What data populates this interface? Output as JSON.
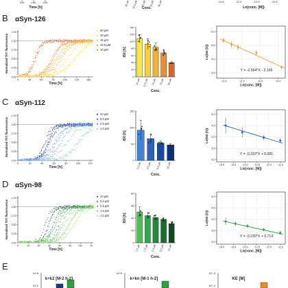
{
  "top_strip": {
    "left_xlabel": "Time [h]",
    "left_ticks": [
      "100",
      "150",
      "200"
    ],
    "mid_ticks": [
      "10 µM",
      "12.5 µM",
      "15 µM",
      "25 µM",
      "50 µM"
    ],
    "mid_xlabel": "Conc.",
    "right_ticks": [
      "-11.5",
      "-11.0",
      "-10.5",
      "-10.0"
    ],
    "right_xlabel": "Ln(conc. [M])"
  },
  "panels": [
    {
      "letter": "B",
      "title": "αSyn-126",
      "color_light": "#f5e94a",
      "color_dark": "#d9531e",
      "legend": [
        "50 µM",
        "25 µM",
        "15 µM",
        "12.5 µM",
        "10 µM"
      ],
      "legend_colors": [
        "#ffe94a",
        "#fbd13a",
        "#f7a632",
        "#f07b27",
        "#e3551e"
      ],
      "kinetics_ylabel": "Normalized ThT fluorescence",
      "kinetics_xlabel": "Time [h]",
      "kinetics_xticks": [
        "0",
        "25",
        "50",
        "75",
        "100",
        "125",
        "150"
      ],
      "kinetics_xmax": 160,
      "kinetics_yticks": [
        "0.00",
        "0.25",
        "0.50",
        "0.75",
        "1.00",
        "1.25"
      ],
      "bar_ylabel": "t50 [h]",
      "bar_xlabel": "Conc.",
      "bar_yticks": [
        "0",
        "20",
        "40",
        "60",
        "80",
        "100",
        "120",
        "140"
      ],
      "bar_ymax": 140,
      "bar_categories": [
        "10 µM",
        "12.5 µM",
        "15 µM",
        "25 µM",
        "50 µM"
      ],
      "bar_values": [
        108,
        93,
        84,
        68,
        40
      ],
      "bar_errors": [
        12,
        15,
        12,
        9,
        3
      ],
      "bar_colors": [
        "#f7e64a",
        "#f5d23d",
        "#f3b232",
        "#ef8d2c",
        "#e4641f"
      ],
      "fit_ylabel": "Ln(t50 [h])",
      "fit_xlabel": "Ln(conc. [M])",
      "fit_xticks": [
        "-11.5",
        "-11.0",
        "-10.5",
        "-10.0"
      ],
      "fit_xrange": [
        -11.7,
        -9.8
      ],
      "fit_yticks": [
        "3.5",
        "4.0",
        "4.5",
        "5.0"
      ],
      "fit_yrange": [
        3.3,
        5.2
      ],
      "fit_x": [
        -11.51,
        -11.29,
        -11.11,
        -10.6,
        -9.9
      ],
      "fit_y": [
        4.68,
        4.53,
        4.43,
        4.22,
        3.7
      ],
      "fit_yerr": [
        0.08,
        0.1,
        0.1,
        0.09,
        0.06
      ],
      "fit_slope": -0.594,
      "fit_intercept": -2.165,
      "equation": "Y = -0.594*X - 2.165",
      "fit_color": "#f0a030",
      "kinetics_curves": [
        {
          "t50": 38,
          "k": 0.14,
          "color": "#e3551e"
        },
        {
          "t50": 68,
          "k": 0.1,
          "color": "#f07b27"
        },
        {
          "t50": 84,
          "k": 0.085,
          "color": "#f7a632"
        },
        {
          "t50": 94,
          "k": 0.075,
          "color": "#fbd13a"
        },
        {
          "t50": 108,
          "k": 0.065,
          "color": "#ffe94a"
        }
      ]
    },
    {
      "letter": "C",
      "title": "αSyn-112",
      "color_light": "#6aaee8",
      "color_dark": "#0d2b6e",
      "legend": [
        "10 µM",
        "5.0 µM",
        "2.5 µM",
        "1.0 µM"
      ],
      "legend_colors": [
        "#0d2b6e",
        "#1b4fb0",
        "#3d7fd9",
        "#7ab8ee"
      ],
      "kinetics_ylabel": "Normalized ThT fluorescence",
      "kinetics_xlabel": "Time [h]",
      "kinetics_xticks": [
        "0",
        "20",
        "40",
        "60",
        "80",
        "100",
        "120"
      ],
      "kinetics_xmax": 125,
      "kinetics_yticks": [
        "0.00",
        "0.25",
        "0.50",
        "0.75",
        "1.00",
        "1.25"
      ],
      "bar_ylabel": "t50 [h]",
      "bar_xlabel": "Conc.",
      "bar_yticks": [
        "0",
        "50",
        "100",
        "150"
      ],
      "bar_ymax": 150,
      "bar_categories": [
        "1.0 µM",
        "2.5 µM",
        "5.0 µM",
        "10 µM"
      ],
      "bar_values": [
        92,
        66,
        53,
        47
      ],
      "bar_errors": [
        30,
        15,
        6,
        4
      ],
      "bar_colors": [
        "#3d86da",
        "#2763c0",
        "#1a4aa0",
        "#0f2f78"
      ],
      "fit_ylabel": "Ln(t50 [h])",
      "fit_xlabel": "Ln(conc. [M])",
      "fit_xticks": [
        "-14.0",
        "-13.5",
        "-13.0",
        "-12.5",
        "-12.0",
        "-11.5"
      ],
      "fit_xrange": [
        -14.2,
        -11.3
      ],
      "fit_yticks": [
        "3.0",
        "3.5",
        "4.0",
        "4.5",
        "5.0"
      ],
      "fit_yrange": [
        2.9,
        5.2
      ],
      "fit_x": [
        -13.82,
        -13.12,
        -12.21,
        -11.51
      ],
      "fit_y": [
        4.5,
        4.2,
        3.97,
        3.84
      ],
      "fit_yerr": [
        0.35,
        0.22,
        0.12,
        0.09
      ],
      "fit_slope": -0.319,
      "fit_intercept": 0.081,
      "equation": "Y = -0.319*X + 0.081",
      "fit_color": "#2a5fbf",
      "kinetics_curves": [
        {
          "t50": 45,
          "k": 0.18,
          "color": "#0d2b6e"
        },
        {
          "t50": 52,
          "k": 0.15,
          "color": "#1b4fb0"
        },
        {
          "t50": 66,
          "k": 0.12,
          "color": "#3d7fd9"
        },
        {
          "t50": 92,
          "k": 0.09,
          "color": "#7ab8ee"
        }
      ]
    },
    {
      "letter": "D",
      "title": "αSyn-98",
      "color_light": "#a8e08a",
      "color_dark": "#0e4a22",
      "legend": [
        "10 µM",
        "5.0 µM",
        "2.5 µM",
        "1.5 µM",
        "1.0 µM"
      ],
      "legend_colors": [
        "#0e4a22",
        "#1f7a35",
        "#35a848",
        "#6cc95a",
        "#a8e08a"
      ],
      "kinetics_ylabel": "Normalized ThT fluorescence",
      "kinetics_xlabel": "Time [h]",
      "kinetics_xticks": [
        "0",
        "10",
        "20",
        "30",
        "40",
        "50",
        "60",
        "70"
      ],
      "kinetics_xmax": 72,
      "kinetics_yticks": [
        "0.00",
        "0.25",
        "0.50",
        "0.75",
        "1.00",
        "1.25"
      ],
      "bar_ylabel": "t50 [h]",
      "bar_xlabel": "Conc.",
      "bar_yticks": [
        "0",
        "20",
        "40",
        "60",
        "80"
      ],
      "bar_ymax": 80,
      "bar_categories": [
        "1.0 µM",
        "1.5 µM",
        "2.5 µM",
        "5.0 µM",
        "10 µM"
      ],
      "bar_values": [
        50,
        44,
        41,
        38,
        31
      ],
      "bar_errors": [
        8,
        5,
        4,
        3,
        3
      ],
      "bar_colors": [
        "#4cc054",
        "#2fa847",
        "#218a3a",
        "#176d2e",
        "#0e4a22"
      ],
      "fit_ylabel": "Ln(t50 [h])",
      "fit_xlabel": "Ln(conc. [M])",
      "fit_xticks": [
        "-14.0",
        "-13.5",
        "-13.0",
        "-12.5",
        "-12.0",
        "-11.5"
      ],
      "fit_xrange": [
        -14.2,
        -11.3
      ],
      "fit_yticks": [
        "3.0",
        "3.5",
        "4.0",
        "4.5",
        "5.0"
      ],
      "fit_yrange": [
        2.9,
        5.2
      ],
      "fit_x": [
        -13.82,
        -13.41,
        -12.9,
        -12.21,
        -11.51
      ],
      "fit_y": [
        3.9,
        3.8,
        3.7,
        3.54,
        3.4
      ],
      "fit_yerr": [
        0.16,
        0.1,
        0.09,
        0.08,
        0.08
      ],
      "fit_slope": -0.23,
      "fit_intercept": 0.714,
      "equation": "Y = -0.230*X + 0.714",
      "fit_color": "#2e9e3f",
      "kinetics_curves": [
        {
          "t50": 30,
          "k": 0.35,
          "color": "#0e4a22"
        },
        {
          "t50": 36,
          "k": 0.3,
          "color": "#1f7a35"
        },
        {
          "t50": 40,
          "k": 0.26,
          "color": "#35a848"
        },
        {
          "t50": 44,
          "k": 0.22,
          "color": "#6cc95a"
        },
        {
          "t50": 50,
          "k": 0.2,
          "color": "#a8e08a"
        }
      ]
    }
  ],
  "panel_e": {
    "letter": "E",
    "labels": [
      "k+k2 [M-2 h-2]",
      "k+kn [M-1 h-2]",
      "KE [M]"
    ],
    "first_ticks": [
      "10^6",
      "10^2"
    ],
    "second_ticks": [
      "10^5"
    ],
    "third_ticks": [
      "10^-3",
      "10^-4"
    ]
  },
  "chart_data": [
    {
      "type": "line",
      "title": "αSyn-126",
      "xlabel": "Time [h]",
      "ylabel": "Normalized ThT fluorescence",
      "series": [
        "50 µM",
        "25 µM",
        "15 µM",
        "12.5 µM",
        "10 µM"
      ]
    },
    {
      "type": "bar",
      "title": "αSyn-126",
      "categories": [
        "10 µM",
        "12.5 µM",
        "15 µM",
        "25 µM",
        "50 µM"
      ],
      "values": [
        108,
        93,
        84,
        68,
        40
      ],
      "xlabel": "Conc.",
      "ylabel": "t50 [h]",
      "ylim": [
        0,
        140
      ]
    },
    {
      "type": "scatter",
      "title": "αSyn-126",
      "x": [
        -11.51,
        -11.29,
        -11.11,
        -10.6,
        -9.9
      ],
      "y": [
        4.68,
        4.53,
        4.43,
        4.22,
        3.7
      ],
      "xlabel": "Ln(conc. [M])",
      "ylabel": "Ln(t50 [h])",
      "fit": "Y = -0.594*X - 2.165"
    },
    {
      "type": "line",
      "title": "αSyn-112",
      "xlabel": "Time [h]",
      "ylabel": "Normalized ThT fluorescence",
      "series": [
        "10 µM",
        "5.0 µM",
        "2.5 µM",
        "1.0 µM"
      ]
    },
    {
      "type": "bar",
      "title": "αSyn-112",
      "categories": [
        "1.0 µM",
        "2.5 µM",
        "5.0 µM",
        "10 µM"
      ],
      "values": [
        92,
        66,
        53,
        47
      ],
      "xlabel": "Conc.",
      "ylabel": "t50 [h]",
      "ylim": [
        0,
        150
      ]
    },
    {
      "type": "scatter",
      "title": "αSyn-112",
      "x": [
        -13.82,
        -13.12,
        -12.21,
        -11.51
      ],
      "y": [
        4.5,
        4.2,
        3.97,
        3.84
      ],
      "xlabel": "Ln(conc. [M])",
      "ylabel": "Ln(t50 [h])",
      "fit": "Y = -0.319*X + 0.081"
    },
    {
      "type": "line",
      "title": "αSyn-98",
      "xlabel": "Time [h]",
      "ylabel": "Normalized ThT fluorescence",
      "series": [
        "10 µM",
        "5.0 µM",
        "2.5 µM",
        "1.5 µM",
        "1.0 µM"
      ]
    },
    {
      "type": "bar",
      "title": "αSyn-98",
      "categories": [
        "1.0 µM",
        "1.5 µM",
        "2.5 µM",
        "5.0 µM",
        "10 µM"
      ],
      "values": [
        50,
        44,
        41,
        38,
        31
      ],
      "xlabel": "Conc.",
      "ylabel": "t50 [h]",
      "ylim": [
        0,
        80
      ]
    },
    {
      "type": "scatter",
      "title": "αSyn-98",
      "x": [
        -13.82,
        -13.41,
        -12.9,
        -12.21,
        -11.51
      ],
      "y": [
        3.9,
        3.8,
        3.7,
        3.54,
        3.4
      ],
      "xlabel": "Ln(conc. [M])",
      "ylabel": "Ln(t50 [h])",
      "fit": "Y = -0.230*X + 0.714"
    }
  ]
}
